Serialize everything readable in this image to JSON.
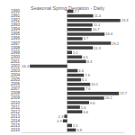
{
  "chart_data": {
    "type": "bar",
    "orientation": "horizontal",
    "title": "Seasonal Spring Deviation - Daily",
    "categories": [
      "1990",
      "1991",
      "1992",
      "1993",
      "1994",
      "1995",
      "1996",
      "1997",
      "1998",
      "1999",
      "2000",
      "2001",
      "2002",
      "2003",
      "2004",
      "2005",
      "2006",
      "2007",
      "2008",
      "2009",
      "2010",
      "2011",
      "2012",
      "2013",
      "2014",
      "2015",
      "2016"
    ],
    "values": [
      2.7,
      11.4,
      23.3,
      11.1,
      10.7,
      16.4,
      6.7,
      19.2,
      11.3,
      2.1,
      6.5,
      8.3,
      -16.4,
      4.6,
      7.3,
      6.1,
      10.1,
      7.6,
      22.7,
      16.2,
      9.6,
      5.6,
      6.6,
      -1.3,
      -1.9,
      2.1,
      3.8
    ],
    "color": "#404040",
    "xlim": [
      -20,
      25
    ],
    "grid": false,
    "data_labels": true,
    "tick_labels": "y"
  }
}
